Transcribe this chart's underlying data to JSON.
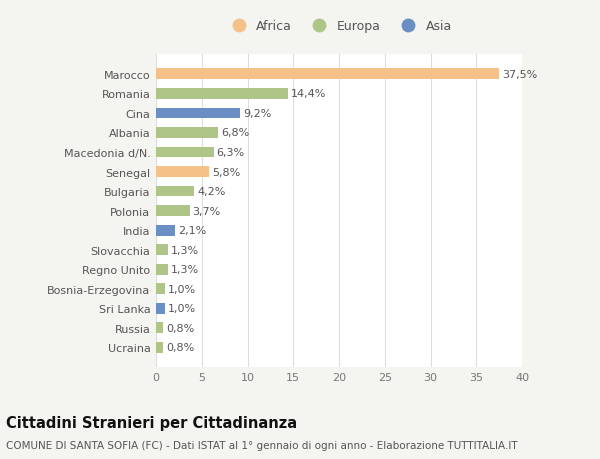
{
  "categories": [
    "Marocco",
    "Romania",
    "Cina",
    "Albania",
    "Macedonia d/N.",
    "Senegal",
    "Bulgaria",
    "Polonia",
    "India",
    "Slovacchia",
    "Regno Unito",
    "Bosnia-Erzegovina",
    "Sri Lanka",
    "Russia",
    "Ucraina"
  ],
  "values": [
    37.5,
    14.4,
    9.2,
    6.8,
    6.3,
    5.8,
    4.2,
    3.7,
    2.1,
    1.3,
    1.3,
    1.0,
    1.0,
    0.8,
    0.8
  ],
  "labels": [
    "37,5%",
    "14,4%",
    "9,2%",
    "6,8%",
    "6,3%",
    "5,8%",
    "4,2%",
    "3,7%",
    "2,1%",
    "1,3%",
    "1,3%",
    "1,0%",
    "1,0%",
    "0,8%",
    "0,8%"
  ],
  "colors": [
    "#f5c189",
    "#afc587",
    "#6b8fc4",
    "#afc587",
    "#afc587",
    "#f5c189",
    "#afc587",
    "#afc587",
    "#6b8fc4",
    "#afc587",
    "#afc587",
    "#afc587",
    "#6b8fc4",
    "#afc587",
    "#afc587"
  ],
  "legend_labels": [
    "Africa",
    "Europa",
    "Asia"
  ],
  "legend_colors": [
    "#f5c189",
    "#afc587",
    "#6b8fc4"
  ],
  "title": "Cittadini Stranieri per Cittadinanza",
  "subtitle": "COMUNE DI SANTA SOFIA (FC) - Dati ISTAT al 1° gennaio di ogni anno - Elaborazione TUTTITALIA.IT",
  "xlim": [
    0,
    40
  ],
  "xticks": [
    0,
    5,
    10,
    15,
    20,
    25,
    30,
    35,
    40
  ],
  "background_color": "#f4f4f0",
  "plot_bg_color": "#ffffff",
  "grid_color": "#dddddd",
  "label_fontsize": 8.0,
  "tick_fontsize": 8.0,
  "title_fontsize": 10.5,
  "subtitle_fontsize": 7.5,
  "bar_height": 0.55
}
